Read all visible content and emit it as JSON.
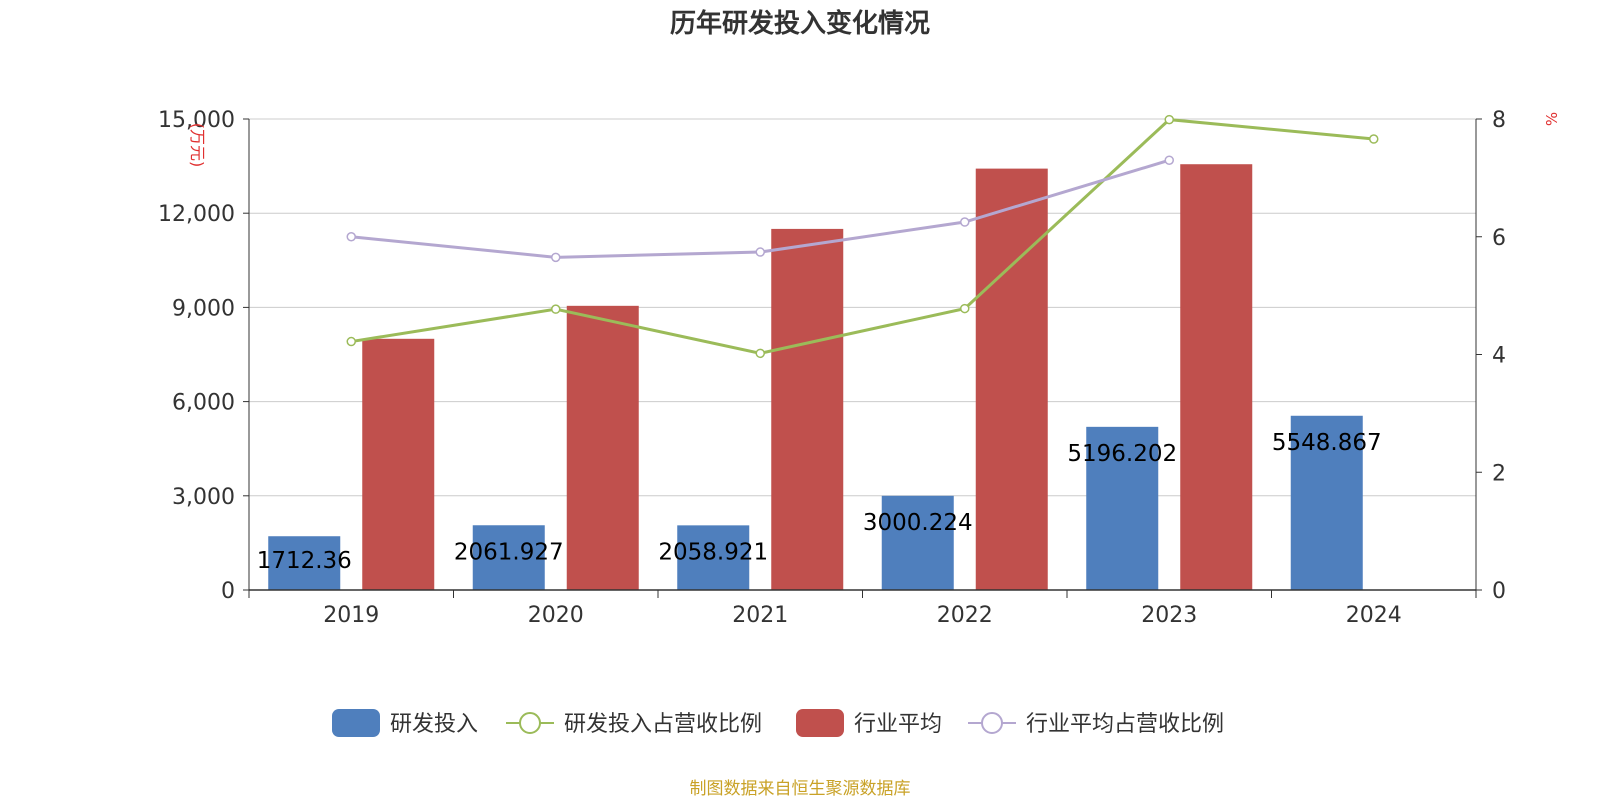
{
  "chart_data": {
    "type": "bar",
    "title": "历年研发投入变化情况",
    "source": "制图数据来自恒生聚源数据库",
    "categories": [
      "2019",
      "2020",
      "2021",
      "2022",
      "2023",
      "2024"
    ],
    "y_left": {
      "unit_label": "(万元)",
      "range": [
        0,
        15000
      ],
      "ticks": [
        "0",
        "3,000",
        "6,000",
        "9,000",
        "12,000",
        "15,000"
      ]
    },
    "y_right": {
      "unit_label": "%",
      "range": [
        0,
        8
      ],
      "ticks": [
        "0",
        "2",
        "4",
        "6",
        "8"
      ]
    },
    "grid": true,
    "legend_position": "bottom",
    "series": [
      {
        "name": "研发投入",
        "type": "bar",
        "axis": "left",
        "color": "#4f7fbd",
        "values": [
          1712.36,
          2061.927,
          2058.921,
          3000.224,
          5196.202,
          5548.867
        ],
        "labels": [
          "1712.36",
          "2061.927",
          "2058.921",
          "3000.224",
          "5196.202",
          "5548.867"
        ]
      },
      {
        "name": "研发投入占营收比例",
        "type": "line",
        "axis": "right",
        "color": "#9bbb59",
        "values": [
          4.22,
          4.77,
          4.02,
          4.78,
          7.99,
          7.66
        ]
      },
      {
        "name": "行业平均",
        "type": "bar",
        "axis": "left",
        "color": "#c0504d",
        "values": [
          8000,
          9050,
          11500,
          13420,
          13560,
          null
        ]
      },
      {
        "name": "行业平均占营收比例",
        "type": "line",
        "axis": "right",
        "color": "#b4a7d0",
        "values": [
          6.0,
          5.65,
          5.74,
          6.25,
          7.3,
          null
        ]
      }
    ]
  }
}
